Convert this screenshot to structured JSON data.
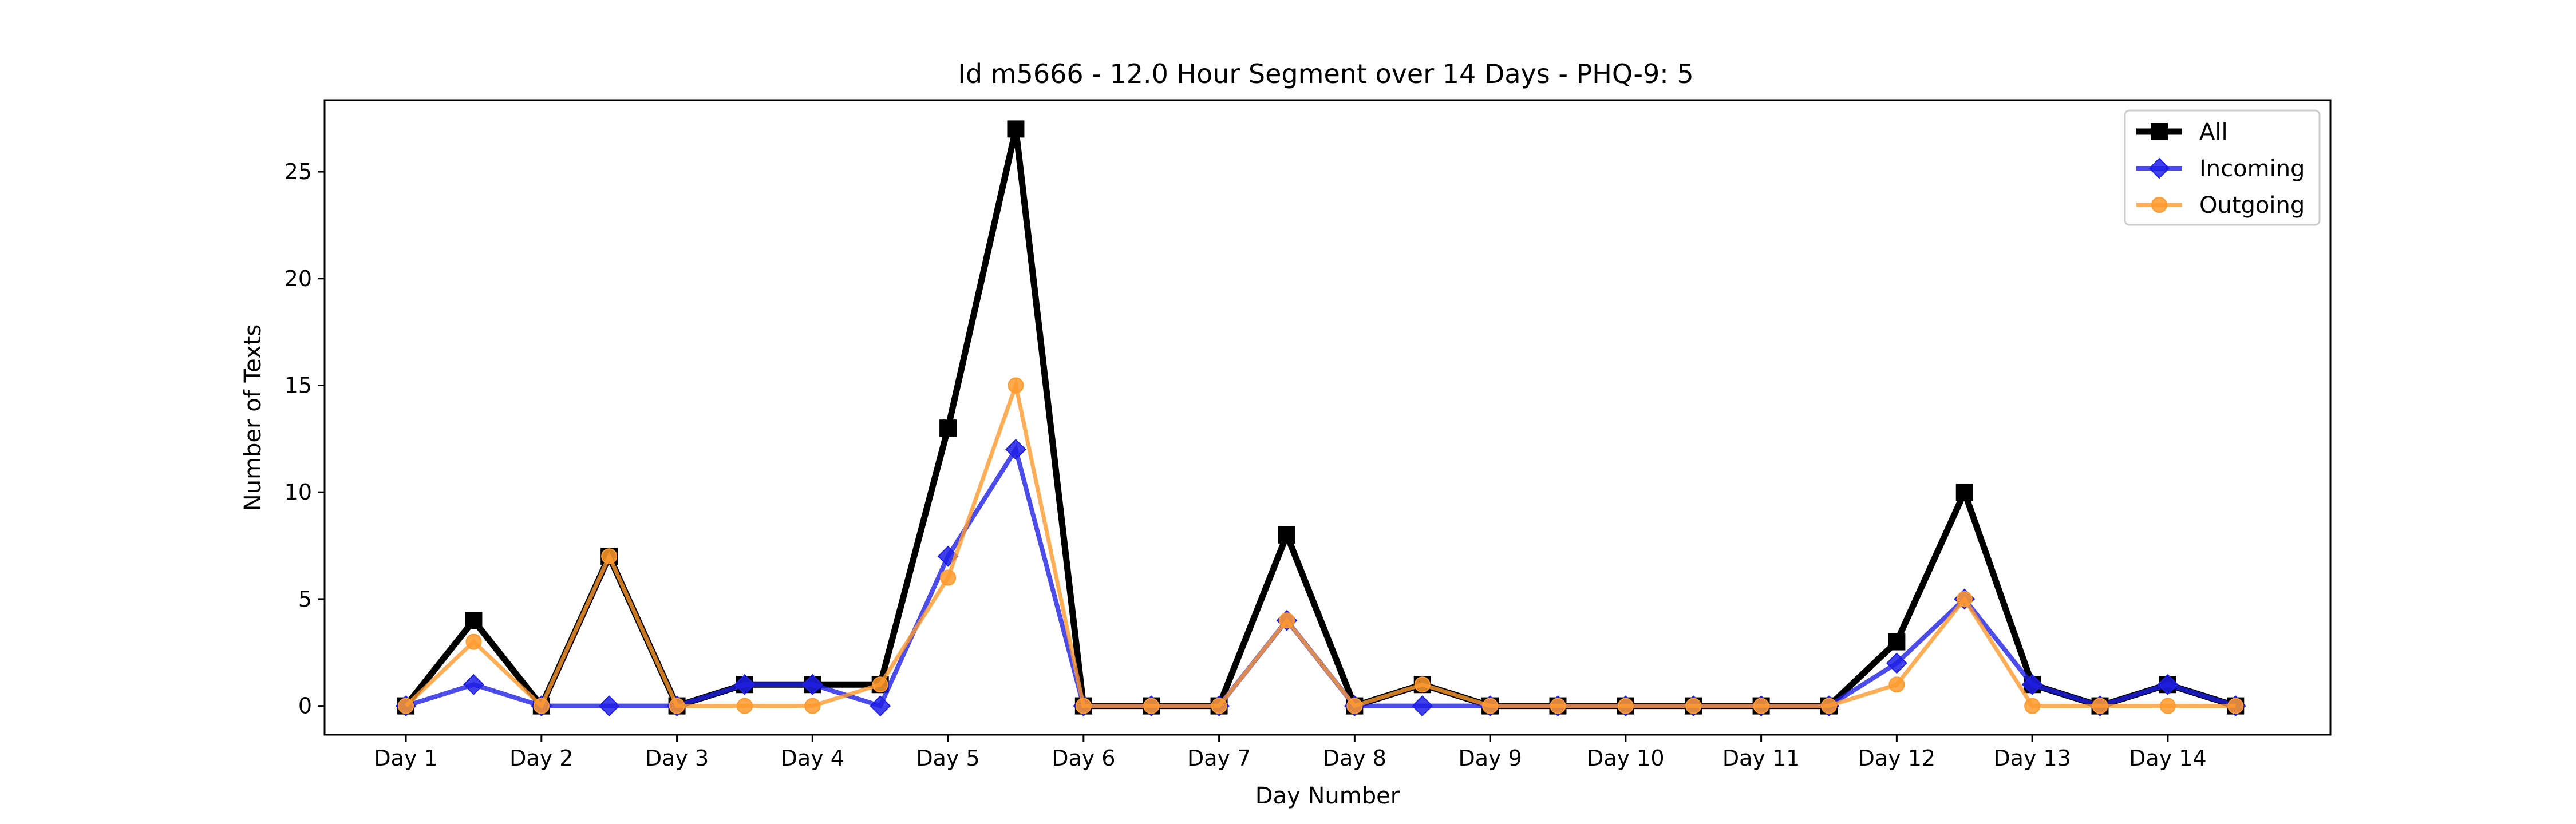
{
  "chart_data": {
    "type": "line",
    "title": "Id m5666 - 12.0 Hour Segment over 14 Days - PHQ-9: 5",
    "xlabel": "Day Number",
    "ylabel": "Number of Texts",
    "categories": [
      "Day 1",
      "Day 2",
      "Day 3",
      "Day 4",
      "Day 5",
      "Day 6",
      "Day 7",
      "Day 8",
      "Day 9",
      "Day 10",
      "Day 11",
      "Day 12",
      "Day 13",
      "Day 14"
    ],
    "x": [
      1,
      1.5,
      2,
      2.5,
      3,
      3.5,
      4,
      4.5,
      5,
      5.5,
      6,
      6.5,
      7,
      7.5,
      8,
      8.5,
      9,
      9.5,
      10,
      10.5,
      11,
      11.5,
      12,
      12.5,
      13,
      13.5,
      14,
      14.5
    ],
    "xlim": [
      0.4,
      15.2
    ],
    "ylim": [
      -1.35,
      28.35
    ],
    "yticks": [
      0,
      5,
      10,
      15,
      20,
      25
    ],
    "grid": false,
    "legend_position": "top-right",
    "series": [
      {
        "name": "All",
        "color": "#000000",
        "marker": "square",
        "values": [
          0,
          4,
          0,
          7,
          0,
          1,
          1,
          1,
          13,
          27,
          0,
          0,
          0,
          8,
          0,
          1,
          0,
          0,
          0,
          0,
          0,
          0,
          3,
          10,
          1,
          0,
          1,
          0
        ]
      },
      {
        "name": "Incoming",
        "color": "#1f1fe6",
        "marker": "diamond",
        "values": [
          0,
          1,
          0,
          0,
          0,
          1,
          1,
          0,
          7,
          12,
          0,
          0,
          0,
          4,
          0,
          0,
          0,
          0,
          0,
          0,
          0,
          0,
          2,
          5,
          1,
          0,
          1,
          0
        ]
      },
      {
        "name": "Outgoing",
        "color": "#ff9a2e",
        "marker": "circle",
        "values": [
          0,
          3,
          0,
          7,
          0,
          0,
          0,
          1,
          6,
          15,
          0,
          0,
          0,
          4,
          0,
          1,
          0,
          0,
          0,
          0,
          0,
          0,
          1,
          5,
          0,
          0,
          0,
          0
        ]
      }
    ]
  }
}
